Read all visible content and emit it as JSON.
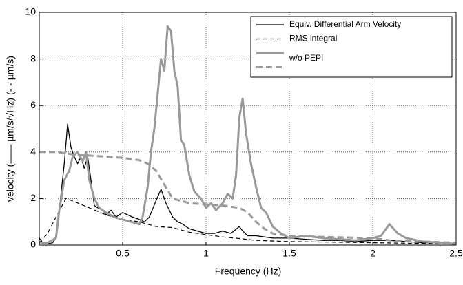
{
  "chart_data": {
    "type": "line",
    "xlabel": "Frequency (Hz)",
    "ylabel": "velocity  (—— µm/s/√Hz) (- - µm/s)",
    "xlim": [
      0,
      2.5
    ],
    "xticks": [
      0.5,
      1,
      1.5,
      2,
      2.5
    ],
    "ylim": [
      0,
      10
    ],
    "yticks": [
      0,
      2,
      4,
      6,
      8,
      10
    ],
    "grid": true,
    "legend": "upper right",
    "series": [
      {
        "name": "Equiv. Differential Arm Velocity",
        "color": "#000000",
        "dashed": false,
        "width": 1.3,
        "x": [
          0,
          0.02,
          0.05,
          0.08,
          0.1,
          0.12,
          0.15,
          0.17,
          0.19,
          0.21,
          0.23,
          0.25,
          0.27,
          0.29,
          0.31,
          0.33,
          0.35,
          0.38,
          0.4,
          0.43,
          0.46,
          0.5,
          0.53,
          0.56,
          0.6,
          0.63,
          0.66,
          0.7,
          0.73,
          0.76,
          0.78,
          0.8,
          0.83,
          0.86,
          0.9,
          0.95,
          1.0,
          1.05,
          1.1,
          1.15,
          1.2,
          1.22,
          1.25,
          1.3,
          1.4,
          1.5,
          1.6,
          1.7,
          1.8,
          1.9,
          2.0,
          2.1,
          2.2,
          2.3,
          2.4,
          2.5
        ],
        "values": [
          0.3,
          0.1,
          0.05,
          0.1,
          0.3,
          1.5,
          3.5,
          5.2,
          4.2,
          3.8,
          3.5,
          3.8,
          3.3,
          3.8,
          2.8,
          1.7,
          1.6,
          1.5,
          1.3,
          1.5,
          1.2,
          1.4,
          1.3,
          1.2,
          1.1,
          1.0,
          1.2,
          1.9,
          2.4,
          1.8,
          1.5,
          1.2,
          1.0,
          0.9,
          0.7,
          0.6,
          0.5,
          0.5,
          0.6,
          0.5,
          0.8,
          0.6,
          0.4,
          0.4,
          0.3,
          0.3,
          0.25,
          0.2,
          0.2,
          0.15,
          0.2,
          0.2,
          0.15,
          0.1,
          0.1,
          0.05
        ]
      },
      {
        "name": "RMS integral",
        "color": "#000000",
        "dashed": true,
        "width": 1.2,
        "x": [
          0,
          0.05,
          0.1,
          0.16,
          0.2,
          0.3,
          0.4,
          0.5,
          0.6,
          0.7,
          0.8,
          0.9,
          1.0,
          1.1,
          1.2,
          1.3,
          1.5,
          2.0,
          2.5
        ],
        "values": [
          0.1,
          0.5,
          1.2,
          2.0,
          1.9,
          1.6,
          1.3,
          1.1,
          1.0,
          0.8,
          0.75,
          0.55,
          0.45,
          0.35,
          0.28,
          0.2,
          0.15,
          0.1,
          0.05
        ]
      },
      {
        "name": "w/o PEPI",
        "color": "#999999",
        "dashed": false,
        "width": 3,
        "x": [
          0,
          0.05,
          0.1,
          0.12,
          0.15,
          0.18,
          0.2,
          0.23,
          0.26,
          0.28,
          0.3,
          0.33,
          0.36,
          0.4,
          0.45,
          0.5,
          0.55,
          0.6,
          0.62,
          0.65,
          0.67,
          0.69,
          0.71,
          0.73,
          0.75,
          0.77,
          0.79,
          0.81,
          0.83,
          0.85,
          0.87,
          0.9,
          0.93,
          0.97,
          1.0,
          1.03,
          1.06,
          1.1,
          1.13,
          1.16,
          1.18,
          1.2,
          1.22,
          1.24,
          1.27,
          1.3,
          1.33,
          1.36,
          1.4,
          1.45,
          1.5,
          1.6,
          1.7,
          1.8,
          1.9,
          2.0,
          2.05,
          2.1,
          2.15,
          2.2,
          2.3,
          2.4,
          2.5
        ],
        "values": [
          0.1,
          0.1,
          0.3,
          1.5,
          2.8,
          3.2,
          3.8,
          4.0,
          3.6,
          4.0,
          2.8,
          2.0,
          1.6,
          1.4,
          1.2,
          1.1,
          1.0,
          0.9,
          1.2,
          2.5,
          4.0,
          5.0,
          6.5,
          8.0,
          7.5,
          9.4,
          9.2,
          7.5,
          6.8,
          4.5,
          4.3,
          3.0,
          2.3,
          2.0,
          1.6,
          1.8,
          1.5,
          1.8,
          2.2,
          2.0,
          3.0,
          5.5,
          6.3,
          4.8,
          3.5,
          2.5,
          1.6,
          1.4,
          0.8,
          0.5,
          0.3,
          0.4,
          0.3,
          0.25,
          0.2,
          0.3,
          0.4,
          0.9,
          0.5,
          0.3,
          0.15,
          0.1,
          0.05
        ]
      },
      {
        "name": "w/o PEPI",
        "color": "#999999",
        "dashed": true,
        "width": 3,
        "x": [
          0,
          0.1,
          0.2,
          0.3,
          0.4,
          0.5,
          0.6,
          0.65,
          0.7,
          0.75,
          0.8,
          0.85,
          0.9,
          1.0,
          1.1,
          1.2,
          1.25,
          1.3,
          1.35,
          1.4,
          1.5,
          1.7,
          2.0,
          2.1,
          2.5
        ],
        "values": [
          4.0,
          4.0,
          3.9,
          3.85,
          3.8,
          3.75,
          3.65,
          3.5,
          3.2,
          2.6,
          2.0,
          1.9,
          1.8,
          1.75,
          1.7,
          1.6,
          1.4,
          1.0,
          0.7,
          0.5,
          0.4,
          0.35,
          0.3,
          0.2,
          0.1
        ]
      }
    ]
  }
}
